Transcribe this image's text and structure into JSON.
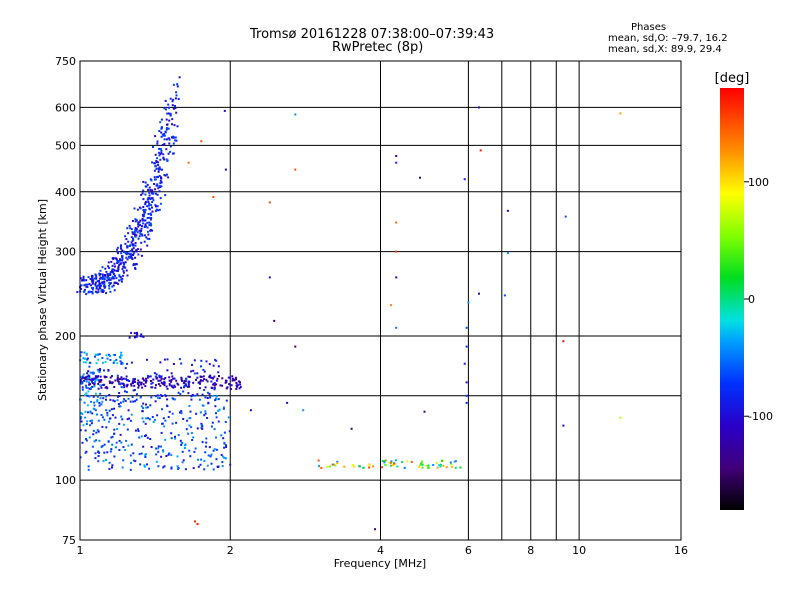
{
  "title_line1": "Tromsø 20161228 07:38:00–07:39:43",
  "title_line2": "RwPretec (8p)",
  "phases": {
    "heading": "Phases",
    "line_o": "mean, sd,O: –79.7, 16.2",
    "line_x": "mean, sd,X:  89.9, 29.4"
  },
  "colorbar": {
    "unit": "[deg]",
    "ticks": [
      "100",
      "0",
      "-100"
    ],
    "tick_values": [
      100,
      0,
      -100
    ],
    "range": [
      -180,
      180
    ]
  },
  "chart_data": {
    "type": "scatter",
    "xlabel": "Frequency [MHz]",
    "ylabel": "Stationary phase Virtual Height [km]",
    "xscale": "log",
    "yscale": "log",
    "xlim": [
      1,
      16
    ],
    "ylim": [
      75,
      750
    ],
    "xticks": [
      1,
      2,
      4,
      6,
      8,
      10,
      16
    ],
    "xtick_labels": [
      "1",
      "2",
      "4",
      "6",
      "8",
      "10",
      "16"
    ],
    "x_grid_extra": [
      7,
      9
    ],
    "yticks": [
      75,
      100,
      200,
      300,
      400,
      500,
      600,
      750
    ],
    "ytick_labels": [
      "75",
      "100",
      "200",
      "300",
      "400",
      "500",
      "600",
      "750"
    ],
    "y_grid": [
      100,
      150,
      200,
      300,
      400,
      500,
      600
    ],
    "color_encoding": "phase [deg]",
    "clusters": [
      {
        "f": [
          1.0,
          1.55
        ],
        "h": [
          255,
          620
        ],
        "phase": [
          -110,
          -60
        ],
        "n": 560,
        "shape": "trace"
      },
      {
        "f": [
          1.0,
          1.22
        ],
        "h": [
          175,
          185
        ],
        "phase": [
          -70,
          -20
        ],
        "n": 40
      },
      {
        "f": [
          1.25,
          1.35
        ],
        "h": [
          198,
          203
        ],
        "phase": [
          -120,
          -80
        ],
        "n": 12
      },
      {
        "f": [
          1.0,
          2.1
        ],
        "h": [
          155,
          165
        ],
        "phase": [
          -140,
          -90
        ],
        "n": 240
      },
      {
        "f": [
          1.0,
          1.9
        ],
        "h": [
          145,
          180
        ],
        "phase": [
          -110,
          -60
        ],
        "n": 130
      },
      {
        "f": [
          1.0,
          2.0
        ],
        "h": [
          105,
          150
        ],
        "phase": [
          -100,
          -30
        ],
        "n": 330
      },
      {
        "f": [
          1.0,
          1.1
        ],
        "h": [
          130,
          170
        ],
        "phase": [
          -60,
          -20
        ],
        "n": 50
      },
      {
        "f": [
          3.0,
          5.8
        ],
        "h": [
          106,
          110
        ],
        "phase": [
          -60,
          160
        ],
        "n": 70
      }
    ],
    "points": [
      {
        "f": 1.75,
        "h": 510,
        "phase": 150
      },
      {
        "f": 1.85,
        "h": 390,
        "phase": 150
      },
      {
        "f": 1.65,
        "h": 460,
        "phase": 140
      },
      {
        "f": 1.95,
        "h": 590,
        "phase": -110
      },
      {
        "f": 1.96,
        "h": 445,
        "phase": -110
      },
      {
        "f": 2.7,
        "h": 580,
        "phase": -40
      },
      {
        "f": 2.7,
        "h": 445,
        "phase": 150
      },
      {
        "f": 2.4,
        "h": 380,
        "phase": 150
      },
      {
        "f": 2.4,
        "h": 265,
        "phase": -100
      },
      {
        "f": 2.45,
        "h": 215,
        "phase": -140
      },
      {
        "f": 2.7,
        "h": 190,
        "phase": -150
      },
      {
        "f": 2.2,
        "h": 140,
        "phase": -120
      },
      {
        "f": 2.6,
        "h": 145,
        "phase": -100
      },
      {
        "f": 2.8,
        "h": 140,
        "phase": -40
      },
      {
        "f": 1.7,
        "h": 82,
        "phase": 165
      },
      {
        "f": 1.72,
        "h": 81,
        "phase": 165
      },
      {
        "f": 3.9,
        "h": 79,
        "phase": -130
      },
      {
        "f": 4.3,
        "h": 475,
        "phase": -110
      },
      {
        "f": 4.3,
        "h": 460,
        "phase": -80
      },
      {
        "f": 4.8,
        "h": 428,
        "phase": -140
      },
      {
        "f": 4.3,
        "h": 345,
        "phase": 140
      },
      {
        "f": 4.3,
        "h": 300,
        "phase": 160
      },
      {
        "f": 4.3,
        "h": 265,
        "phase": -110
      },
      {
        "f": 4.2,
        "h": 232,
        "phase": 130
      },
      {
        "f": 4.3,
        "h": 208,
        "phase": -50
      },
      {
        "f": 4.9,
        "h": 139,
        "phase": -140
      },
      {
        "f": 3.5,
        "h": 128,
        "phase": -120
      },
      {
        "f": 5.9,
        "h": 425,
        "phase": -90
      },
      {
        "f": 6.3,
        "h": 600,
        "phase": -120
      },
      {
        "f": 6.35,
        "h": 488,
        "phase": 170
      },
      {
        "f": 7.2,
        "h": 365,
        "phase": -110
      },
      {
        "f": 7.2,
        "h": 298,
        "phase": -40
      },
      {
        "f": 7.1,
        "h": 243,
        "phase": -60
      },
      {
        "f": 6.3,
        "h": 245,
        "phase": -100
      },
      {
        "f": 6.0,
        "h": 235,
        "phase": -40
      },
      {
        "f": 5.95,
        "h": 208,
        "phase": -60
      },
      {
        "f": 5.95,
        "h": 190,
        "phase": -80
      },
      {
        "f": 5.9,
        "h": 175,
        "phase": -90
      },
      {
        "f": 5.95,
        "h": 160,
        "phase": -100
      },
      {
        "f": 5.95,
        "h": 150,
        "phase": -70
      },
      {
        "f": 5.95,
        "h": 145,
        "phase": -80
      },
      {
        "f": 9.4,
        "h": 355,
        "phase": -60
      },
      {
        "f": 9.3,
        "h": 195,
        "phase": 175
      },
      {
        "f": 9.3,
        "h": 130,
        "phase": -120
      },
      {
        "f": 12.1,
        "h": 583,
        "phase": 120
      },
      {
        "f": 12.1,
        "h": 135,
        "phase": 70
      }
    ]
  }
}
